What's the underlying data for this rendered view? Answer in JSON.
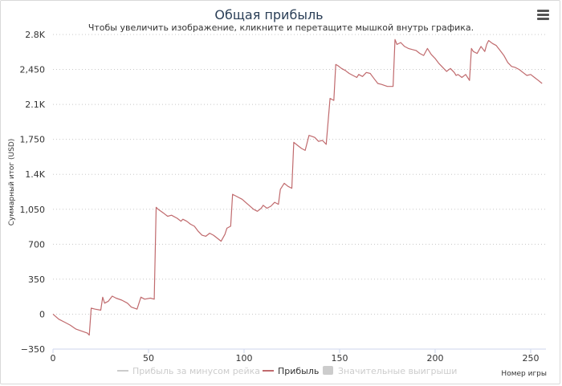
{
  "chart_data": {
    "type": "line",
    "title": "Общая прибыль",
    "subtitle": "Чтобы увеличить изображение, кликните и перетащите мышкой внутрь графика.",
    "ylabel": "Суммарный итог (USD)",
    "xlabel": "Номер игры",
    "xlim": [
      0,
      258
    ],
    "ylim": [
      -350,
      2800
    ],
    "x_ticks": [
      "0",
      "50",
      "100",
      "150",
      "200",
      "250"
    ],
    "y_ticks": [
      {
        "value": 2800,
        "label": "2.8K"
      },
      {
        "value": 2450,
        "label": "2,450"
      },
      {
        "value": 2100,
        "label": "2.1K"
      },
      {
        "value": 1750,
        "label": "1,750"
      },
      {
        "value": 1400,
        "label": "1.4K"
      },
      {
        "value": 1050,
        "label": "1,050"
      },
      {
        "value": 700,
        "label": "700"
      },
      {
        "value": 350,
        "label": "350"
      },
      {
        "value": 0,
        "label": "0"
      },
      {
        "value": -350,
        "label": "−350"
      }
    ],
    "legend_position": "bottom",
    "series": [
      {
        "name": "Прибыль за минусом рейка",
        "visible": false,
        "color": "#cccccc",
        "values": []
      },
      {
        "name": "Прибыль",
        "visible": true,
        "color": "#c06a6d",
        "x": [
          0,
          3,
          6,
          9,
          12,
          15,
          18,
          19,
          20,
          22,
          25,
          26,
          27,
          29,
          31,
          33,
          36,
          39,
          41,
          44,
          46,
          48,
          51,
          53,
          54,
          55,
          58,
          60,
          62,
          65,
          67,
          68,
          70,
          72,
          74,
          76,
          78,
          80,
          82,
          84,
          86,
          88,
          90,
          91,
          93,
          94,
          96,
          99,
          102,
          105,
          107,
          109,
          110,
          112,
          114,
          116,
          118,
          119,
          121,
          123,
          125,
          126,
          128,
          130,
          132,
          134,
          137,
          139,
          141,
          143,
          145,
          147,
          148,
          149,
          151,
          153,
          155,
          157,
          159,
          160,
          162,
          164,
          166,
          168,
          170,
          172,
          175,
          178,
          179,
          180,
          182,
          184,
          186,
          188,
          190,
          192,
          194,
          196,
          198,
          200,
          202,
          204,
          206,
          208,
          210,
          211,
          212,
          214,
          216,
          218,
          219,
          220,
          222,
          224,
          226,
          227,
          228,
          230,
          232,
          234,
          236,
          238,
          240,
          242,
          244,
          246,
          248,
          250,
          252,
          254,
          256
        ],
        "values": [
          0,
          -50,
          -80,
          -110,
          -150,
          -170,
          -190,
          -210,
          60,
          50,
          40,
          170,
          110,
          130,
          180,
          160,
          140,
          110,
          70,
          50,
          170,
          150,
          160,
          150,
          1070,
          1050,
          1010,
          980,
          990,
          960,
          930,
          950,
          930,
          900,
          880,
          830,
          790,
          780,
          810,
          790,
          760,
          730,
          800,
          860,
          880,
          1200,
          1180,
          1150,
          1100,
          1050,
          1030,
          1060,
          1090,
          1060,
          1080,
          1120,
          1100,
          1250,
          1310,
          1280,
          1260,
          1720,
          1690,
          1660,
          1640,
          1790,
          1770,
          1730,
          1740,
          1700,
          2160,
          2140,
          2500,
          2490,
          2460,
          2440,
          2410,
          2390,
          2370,
          2400,
          2380,
          2420,
          2410,
          2360,
          2310,
          2300,
          2280,
          2280,
          2750,
          2700,
          2720,
          2680,
          2660,
          2650,
          2640,
          2610,
          2590,
          2660,
          2600,
          2560,
          2510,
          2470,
          2430,
          2460,
          2420,
          2390,
          2400,
          2370,
          2400,
          2340,
          2660,
          2630,
          2610,
          2680,
          2630,
          2700,
          2740,
          2710,
          2690,
          2640,
          2590,
          2520,
          2480,
          2470,
          2450,
          2420,
          2390,
          2400,
          2370,
          2340,
          2310
        ]
      },
      {
        "name": "Значительные выигрыши",
        "visible": false,
        "color": "#cccccc",
        "values": []
      }
    ]
  }
}
